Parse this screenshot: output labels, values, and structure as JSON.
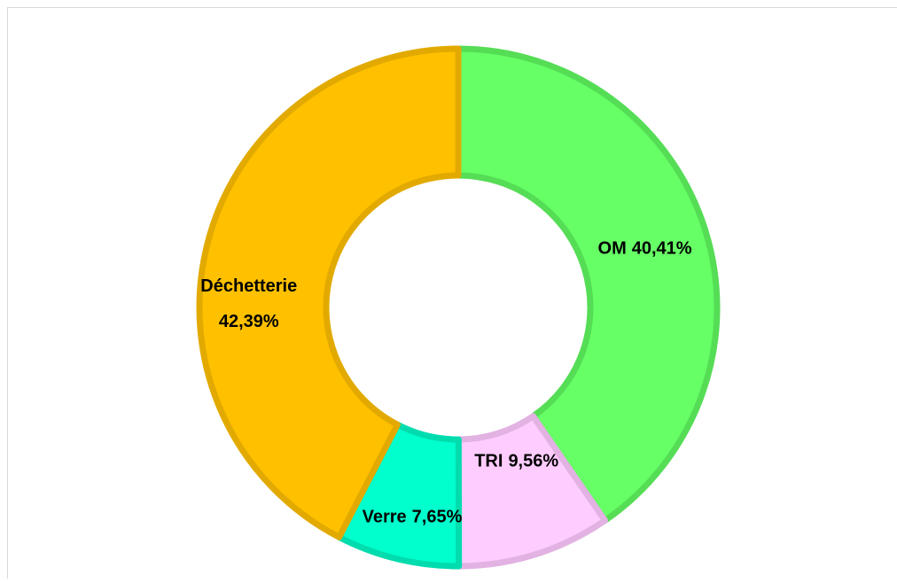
{
  "chart_data": {
    "type": "donut",
    "categories": [
      "OM",
      "TRI",
      "Verre",
      "Déchetterie"
    ],
    "values": [
      40.41,
      9.56,
      7.65,
      42.39
    ],
    "value_labels": [
      "40,41%",
      "9,56%",
      "7,65%",
      "42,39%"
    ],
    "colors": [
      "#66ff66",
      "#ffccff",
      "#00ffcc",
      "#ffc000"
    ],
    "edge_colors": [
      "#55dd55",
      "#e2b2e2",
      "#00dcae",
      "#e2aa00"
    ]
  }
}
